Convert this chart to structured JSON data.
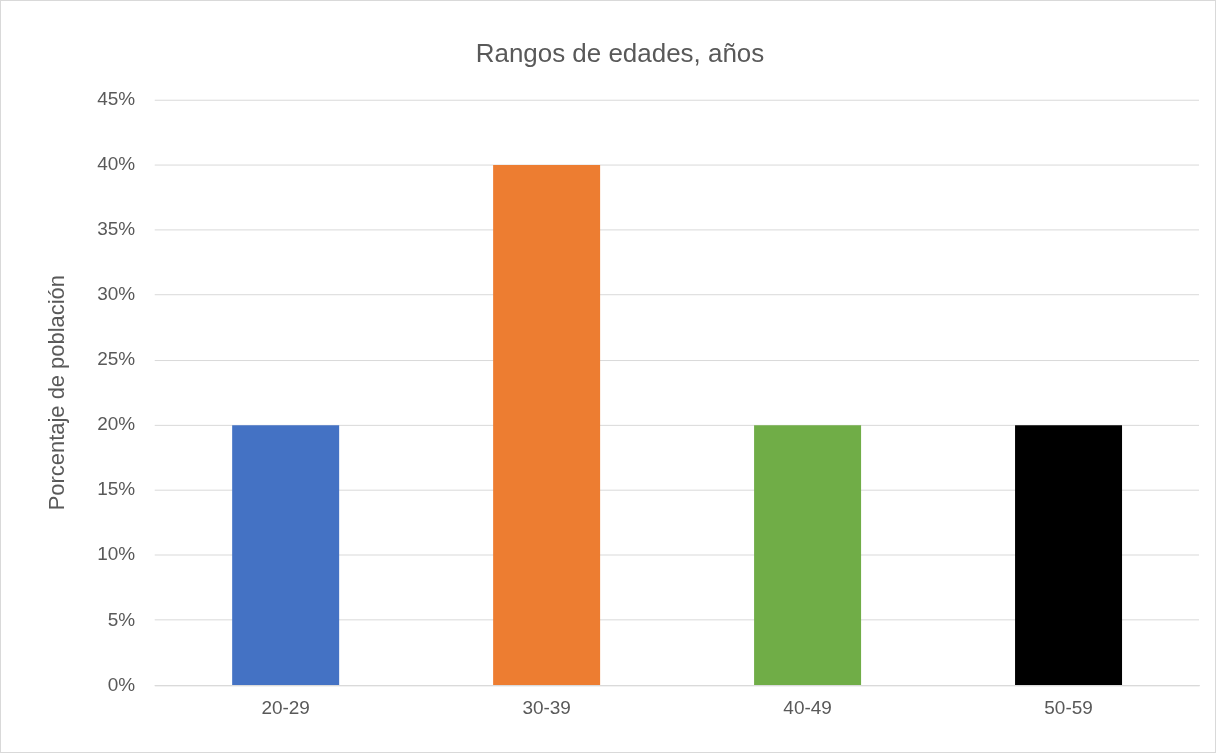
{
  "chart_data": {
    "type": "bar",
    "title": "Rangos de edades, años",
    "ylabel": "Porcentaje de población",
    "categories": [
      "20-29",
      "30-39",
      "40-49",
      "50-59"
    ],
    "values": [
      20,
      40,
      20,
      20
    ],
    "colors": [
      "#4472c4",
      "#ed7d31",
      "#70ad47",
      "#000000"
    ],
    "ylim": [
      0,
      45
    ],
    "yticks": [
      {
        "value": 0,
        "label": "0%"
      },
      {
        "value": 5,
        "label": "5%"
      },
      {
        "value": 10,
        "label": "10%"
      },
      {
        "value": 15,
        "label": "15%"
      },
      {
        "value": 20,
        "label": "20%"
      },
      {
        "value": 25,
        "label": "25%"
      },
      {
        "value": 30,
        "label": "30%"
      },
      {
        "value": 35,
        "label": "35%"
      },
      {
        "value": 40,
        "label": "40%"
      },
      {
        "value": 45,
        "label": "45%"
      }
    ],
    "grid": "y",
    "legend": false
  }
}
